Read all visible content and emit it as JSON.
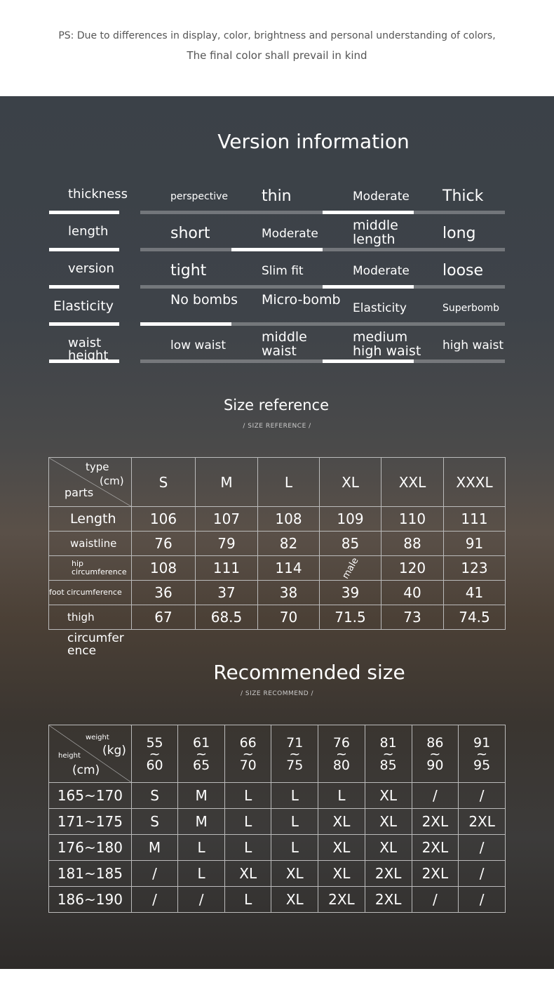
{
  "note": {
    "line1": "PS: Due to differences in display, color, brightness and personal understanding of colors,",
    "line2": "The final color shall prevail in kind"
  },
  "version": {
    "title": "Version information",
    "rows": [
      {
        "label": "thickness",
        "options": [
          "perspective",
          "thin",
          "Moderate",
          "Thick"
        ],
        "selected": 2
      },
      {
        "label": "length",
        "options": [
          "short",
          "Moderate",
          "middle length",
          "long"
        ],
        "selected": 1
      },
      {
        "label": "version",
        "options": [
          "tight",
          "Slim fit",
          "Moderate",
          "loose"
        ],
        "selected": 2
      },
      {
        "label": "Elasticity",
        "options": [
          "No bombs",
          "Micro-bomb",
          "Elasticity",
          "Superbomb"
        ],
        "selected": 0
      },
      {
        "label": "waist height",
        "options": [
          "low waist",
          "middle waist",
          "medium high waist",
          "high waist"
        ],
        "selected": 2
      }
    ]
  },
  "size": {
    "title": "Size reference",
    "subtitle": "/ SIZE REFERENCE /",
    "corner": {
      "type": "type",
      "unit": "(cm)",
      "parts": "parts"
    },
    "sizes": [
      "S",
      "M",
      "L",
      "XL",
      "XXL",
      "XXXL"
    ],
    "rows": [
      {
        "part": "Length",
        "values": [
          "106",
          "107",
          "108",
          "109",
          "110",
          "111"
        ]
      },
      {
        "part": "waistline",
        "values": [
          "76",
          "79",
          "82",
          "85",
          "88",
          "91"
        ]
      },
      {
        "part": "hip circumference",
        "values": [
          "108",
          "111",
          "114",
          "male",
          "120",
          "123"
        ]
      },
      {
        "part": "foot circumference",
        "values": [
          "36",
          "37",
          "38",
          "39",
          "40",
          "41"
        ]
      },
      {
        "part": "thigh",
        "values": [
          "67",
          "68.5",
          "70",
          "71.5",
          "73",
          "74.5"
        ]
      }
    ],
    "trailing": "circumfer ence"
  },
  "recommend": {
    "title": "Recommended size",
    "subtitle": "/ SIZE RECOMMEND /",
    "corner": {
      "weight": "weight",
      "kg": "(kg)",
      "height": "height",
      "cm": "(cm)"
    },
    "weights": [
      [
        "55",
        "60"
      ],
      [
        "61",
        "65"
      ],
      [
        "66",
        "70"
      ],
      [
        "71",
        "75"
      ],
      [
        "76",
        "80"
      ],
      [
        "81",
        "85"
      ],
      [
        "86",
        "90"
      ],
      [
        "91",
        "95"
      ]
    ],
    "rows": [
      {
        "height": "165~170",
        "values": [
          "S",
          "M",
          "L",
          "L",
          "L",
          "XL",
          "/",
          "/"
        ]
      },
      {
        "height": "171~175",
        "values": [
          "S",
          "M",
          "L",
          "L",
          "XL",
          "XL",
          "2XL",
          "2XL"
        ]
      },
      {
        "height": "176~180",
        "values": [
          "M",
          "L",
          "L",
          "L",
          "XL",
          "XL",
          "2XL",
          "/"
        ]
      },
      {
        "height": "181~185",
        "values": [
          "/",
          "L",
          "XL",
          "XL",
          "XL",
          "2XL",
          "2XL",
          "/"
        ]
      },
      {
        "height": "186~190",
        "values": [
          "/",
          "/",
          "L",
          "XL",
          "2XL",
          "2XL",
          "/",
          "/"
        ]
      }
    ]
  }
}
